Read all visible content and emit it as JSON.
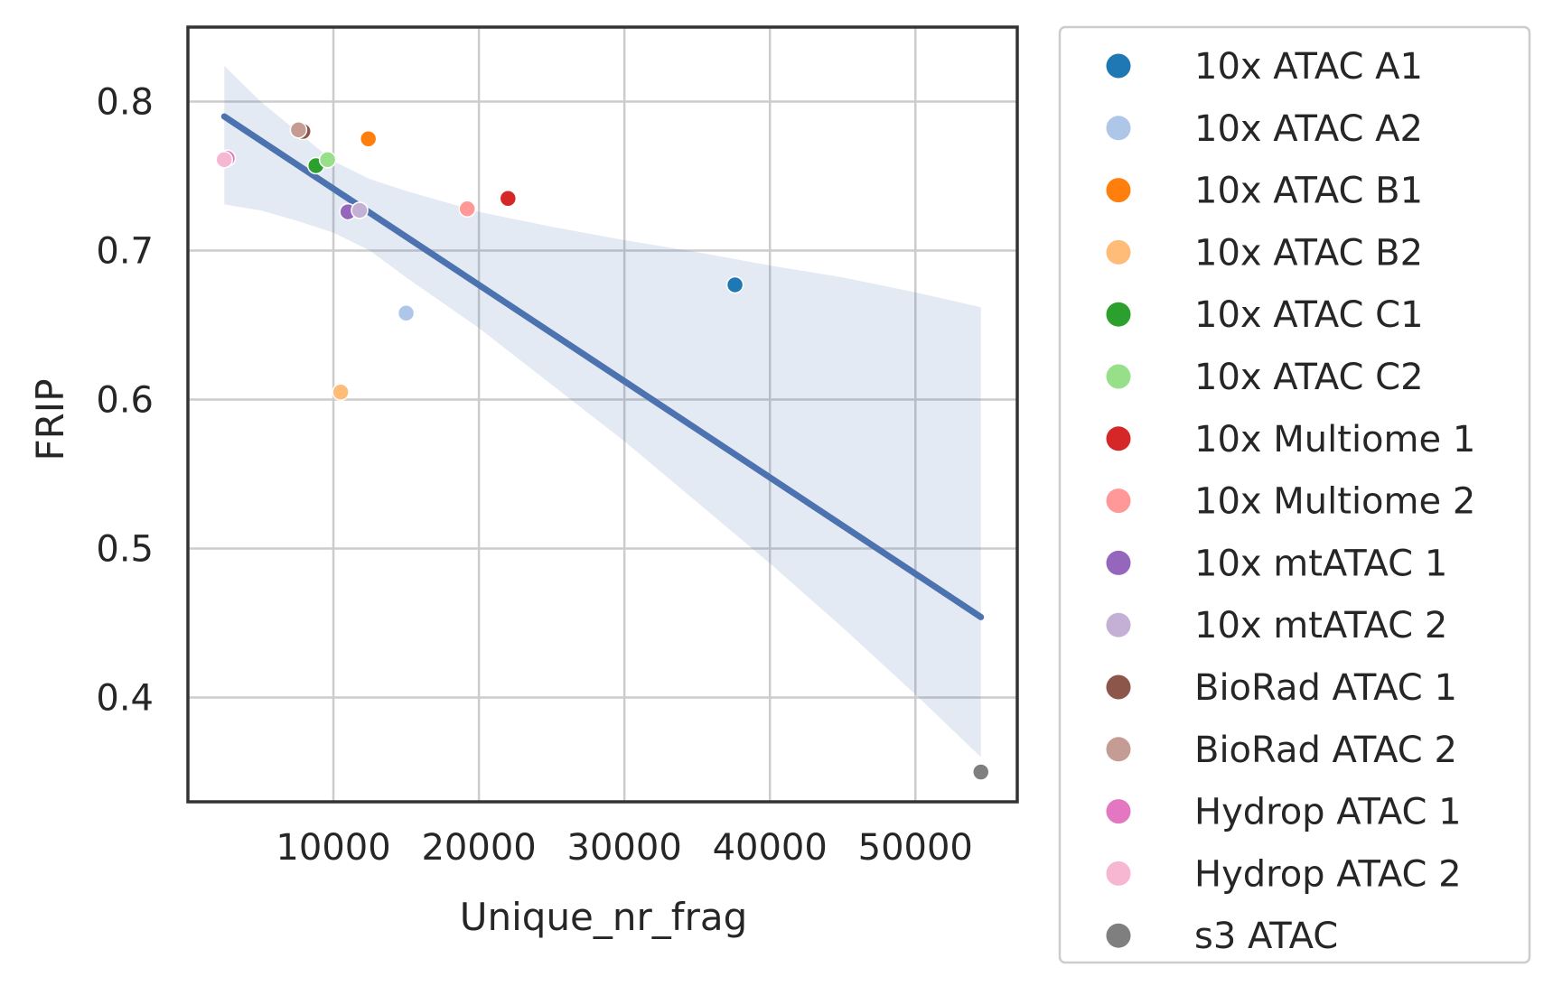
{
  "chart_data": {
    "type": "scatter",
    "title": "",
    "xlabel": "Unique_nr_frag",
    "ylabel": "FRIP",
    "xlim": [
      0,
      57000
    ],
    "ylim": [
      0.33,
      0.85
    ],
    "x_ticks": [
      10000,
      20000,
      30000,
      40000,
      50000
    ],
    "x_tick_labels": [
      "10000",
      "20000",
      "30000",
      "40000",
      "50000"
    ],
    "y_ticks": [
      0.4,
      0.5,
      0.6,
      0.7,
      0.8
    ],
    "y_tick_labels": [
      "0.4",
      "0.5",
      "0.6",
      "0.7",
      "0.8"
    ],
    "grid": true,
    "legend_position": "outside-right",
    "regression": {
      "x_range": [
        2500,
        54500
      ],
      "y_at_range": [
        0.79,
        0.454
      ],
      "ci_band": [
        {
          "x": 2500,
          "lo": 0.731,
          "hi": 0.824
        },
        {
          "x": 5000,
          "lo": 0.727,
          "hi": 0.8
        },
        {
          "x": 7500,
          "lo": 0.72,
          "hi": 0.78
        },
        {
          "x": 10000,
          "lo": 0.712,
          "hi": 0.76
        },
        {
          "x": 12500,
          "lo": 0.7,
          "hi": 0.748
        },
        {
          "x": 15000,
          "lo": 0.682,
          "hi": 0.74
        },
        {
          "x": 20000,
          "lo": 0.648,
          "hi": 0.726
        },
        {
          "x": 25000,
          "lo": 0.61,
          "hi": 0.716
        },
        {
          "x": 30000,
          "lo": 0.572,
          "hi": 0.707
        },
        {
          "x": 35000,
          "lo": 0.531,
          "hi": 0.699
        },
        {
          "x": 40000,
          "lo": 0.49,
          "hi": 0.69
        },
        {
          "x": 45000,
          "lo": 0.447,
          "hi": 0.682
        },
        {
          "x": 50000,
          "lo": 0.402,
          "hi": 0.672
        },
        {
          "x": 54500,
          "lo": 0.36,
          "hi": 0.662
        }
      ],
      "line_color": "#4c72b0",
      "band_color": "#4c72b0"
    },
    "series": [
      {
        "name": "10x ATAC A1",
        "color": "#1f77b4",
        "x": [
          37600
        ],
        "y": [
          0.677
        ]
      },
      {
        "name": "10x ATAC A2",
        "color": "#aec7e8",
        "x": [
          15000
        ],
        "y": [
          0.658
        ]
      },
      {
        "name": "10x ATAC B1",
        "color": "#ff7f0e",
        "x": [
          12400
        ],
        "y": [
          0.775
        ]
      },
      {
        "name": "10x ATAC B2",
        "color": "#ffbb78",
        "x": [
          10500
        ],
        "y": [
          0.605
        ]
      },
      {
        "name": "10x ATAC C1",
        "color": "#2ca02c",
        "x": [
          8800
        ],
        "y": [
          0.757
        ]
      },
      {
        "name": "10x ATAC C2",
        "color": "#98df8a",
        "x": [
          9600
        ],
        "y": [
          0.761
        ]
      },
      {
        "name": "10x Multiome 1",
        "color": "#d62728",
        "x": [
          22000
        ],
        "y": [
          0.735
        ]
      },
      {
        "name": "10x Multiome 2",
        "color": "#ff9896",
        "x": [
          19200
        ],
        "y": [
          0.728
        ]
      },
      {
        "name": "10x mtATAC 1",
        "color": "#9467bd",
        "x": [
          11000
        ],
        "y": [
          0.726
        ]
      },
      {
        "name": "10x mtATAC 2",
        "color": "#c5b0d5",
        "x": [
          11800
        ],
        "y": [
          0.727
        ]
      },
      {
        "name": "BioRad ATAC 1",
        "color": "#8c564b",
        "x": [
          7900
        ],
        "y": [
          0.78
        ]
      },
      {
        "name": "BioRad ATAC 2",
        "color": "#c49c94",
        "x": [
          7600
        ],
        "y": [
          0.781
        ]
      },
      {
        "name": "Hydrop ATAC 1",
        "color": "#e377c2",
        "x": [
          2700
        ],
        "y": [
          0.762
        ]
      },
      {
        "name": "Hydrop ATAC 2",
        "color": "#f7b6d2",
        "x": [
          2500
        ],
        "y": [
          0.761
        ]
      },
      {
        "name": "s3 ATAC",
        "color": "#7f7f7f",
        "x": [
          54500
        ],
        "y": [
          0.35
        ]
      }
    ]
  }
}
